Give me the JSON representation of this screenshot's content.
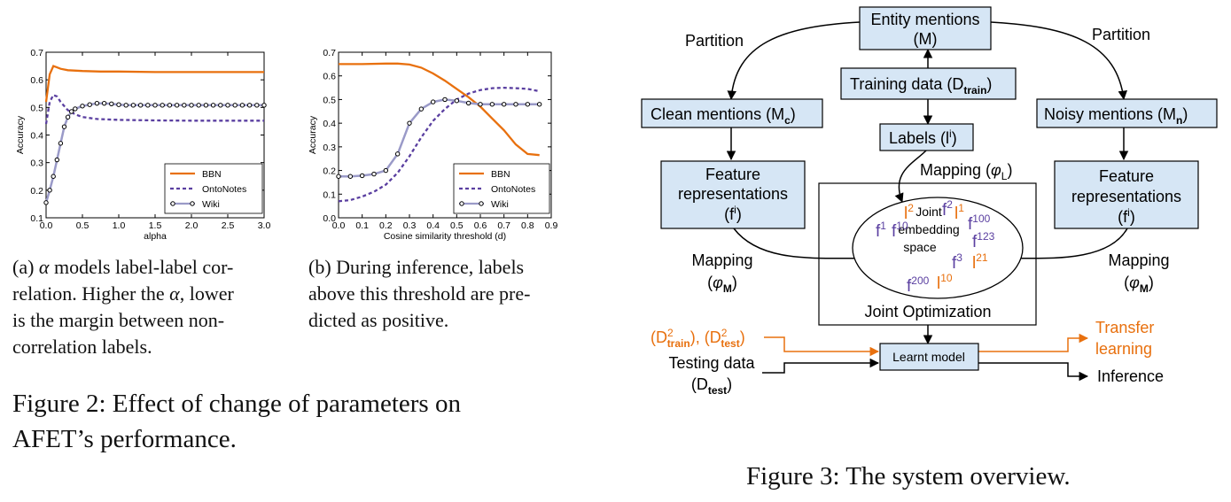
{
  "chart_data": [
    {
      "type": "line",
      "xlabel": "alpha",
      "ylabel": "Accuracy",
      "xlim": [
        0.0,
        3.0
      ],
      "ylim": [
        0.1,
        0.7
      ],
      "xticks": [
        "0.0",
        "0.5",
        "1.0",
        "1.5",
        "2.0",
        "2.5",
        "3.0"
      ],
      "yticks": [
        "0.1",
        "0.2",
        "0.3",
        "0.4",
        "0.5",
        "0.6",
        "0.7"
      ],
      "legend_position": "lower-right",
      "series": [
        {
          "name": "BBN",
          "color": "#e8700e",
          "style": "solid",
          "markers": false,
          "x": [
            0.0,
            0.05,
            0.1,
            0.15,
            0.2,
            0.3,
            0.5,
            0.75,
            1.0,
            1.5,
            2.0,
            2.5,
            3.0
          ],
          "y": [
            0.52,
            0.62,
            0.65,
            0.645,
            0.64,
            0.635,
            0.632,
            0.63,
            0.63,
            0.628,
            0.628,
            0.628,
            0.628
          ]
        },
        {
          "name": "OntoNotes",
          "color": "#5a3fa0",
          "style": "dashed",
          "markers": false,
          "x": [
            0.0,
            0.05,
            0.1,
            0.15,
            0.2,
            0.3,
            0.4,
            0.5,
            0.7,
            1.0,
            1.5,
            2.0,
            2.5,
            3.0
          ],
          "y": [
            0.44,
            0.52,
            0.545,
            0.54,
            0.52,
            0.49,
            0.475,
            0.465,
            0.458,
            0.455,
            0.453,
            0.452,
            0.452,
            0.452
          ]
        },
        {
          "name": "Wiki",
          "color": "#9a9ac8",
          "style": "solid",
          "markers": true,
          "x": [
            0.0,
            0.05,
            0.1,
            0.15,
            0.2,
            0.25,
            0.3,
            0.35,
            0.4,
            0.5,
            0.6,
            0.7,
            0.8,
            0.9,
            1.0,
            1.1,
            1.2,
            1.3,
            1.4,
            1.5,
            1.6,
            1.7,
            1.8,
            1.9,
            2.0,
            2.1,
            2.2,
            2.3,
            2.4,
            2.5,
            2.6,
            2.7,
            2.8,
            2.9,
            3.0
          ],
          "y": [
            0.155,
            0.2,
            0.25,
            0.31,
            0.37,
            0.43,
            0.465,
            0.485,
            0.495,
            0.505,
            0.51,
            0.515,
            0.515,
            0.513,
            0.51,
            0.508,
            0.508,
            0.508,
            0.508,
            0.508,
            0.508,
            0.508,
            0.508,
            0.508,
            0.508,
            0.508,
            0.508,
            0.508,
            0.508,
            0.508,
            0.508,
            0.508,
            0.508,
            0.508,
            0.508
          ]
        }
      ]
    },
    {
      "type": "line",
      "xlabel": "Cosine similarity threshold (d)",
      "ylabel": "Accuracy",
      "xlim": [
        0.0,
        0.9
      ],
      "ylim": [
        0.0,
        0.7
      ],
      "xticks": [
        "0.0",
        "0.1",
        "0.2",
        "0.3",
        "0.4",
        "0.5",
        "0.6",
        "0.7",
        "0.8",
        "0.9"
      ],
      "yticks": [
        "0.0",
        "0.1",
        "0.2",
        "0.3",
        "0.4",
        "0.5",
        "0.6",
        "0.7"
      ],
      "legend_position": "lower-right",
      "series": [
        {
          "name": "BBN",
          "color": "#e8700e",
          "style": "solid",
          "markers": false,
          "x": [
            0.0,
            0.1,
            0.2,
            0.25,
            0.3,
            0.35,
            0.4,
            0.45,
            0.5,
            0.55,
            0.6,
            0.65,
            0.7,
            0.75,
            0.8,
            0.85
          ],
          "y": [
            0.65,
            0.65,
            0.652,
            0.652,
            0.648,
            0.635,
            0.61,
            0.58,
            0.545,
            0.51,
            0.47,
            0.42,
            0.37,
            0.31,
            0.27,
            0.265
          ]
        },
        {
          "name": "OntoNotes",
          "color": "#5a3fa0",
          "style": "dashed",
          "markers": false,
          "x": [
            0.0,
            0.05,
            0.1,
            0.15,
            0.2,
            0.25,
            0.3,
            0.35,
            0.4,
            0.45,
            0.5,
            0.55,
            0.6,
            0.65,
            0.7,
            0.75,
            0.8,
            0.85
          ],
          "y": [
            0.07,
            0.075,
            0.09,
            0.11,
            0.14,
            0.19,
            0.26,
            0.34,
            0.41,
            0.46,
            0.5,
            0.525,
            0.54,
            0.548,
            0.55,
            0.548,
            0.545,
            0.535
          ]
        },
        {
          "name": "Wiki",
          "color": "#9a9ac8",
          "style": "solid",
          "markers": true,
          "x": [
            0.0,
            0.05,
            0.1,
            0.15,
            0.2,
            0.25,
            0.3,
            0.35,
            0.4,
            0.45,
            0.5,
            0.55,
            0.6,
            0.65,
            0.7,
            0.75,
            0.8,
            0.85
          ],
          "y": [
            0.175,
            0.175,
            0.178,
            0.185,
            0.2,
            0.27,
            0.4,
            0.46,
            0.49,
            0.5,
            0.495,
            0.485,
            0.48,
            0.48,
            0.48,
            0.48,
            0.48,
            0.48
          ]
        }
      ]
    }
  ],
  "captions": {
    "a_prefix": "(a) ",
    "a_symbol": "α",
    "a_line1": " models label-label cor-",
    "a_line2a": "relation. Higher the ",
    "a_line2b": "α",
    "a_line2c": ", lower",
    "a_line3": "is the margin between non-",
    "a_line4": "correlation labels.",
    "b_line1": "(b) During inference, labels",
    "b_line2": "above this threshold are pre-",
    "b_line3": "dicted as positive.",
    "fig2_line1": "Figure 2:  Effect of change of parameters on",
    "fig2_line2": "AFET’s performance.",
    "fig3": "Figure 3: The system overview."
  },
  "diagram": {
    "entity_mentions_1": "Entity mentions",
    "entity_mentions_2": "(M)",
    "partition_left": "Partition",
    "partition_right": "Partition",
    "training_data": "Training data (D",
    "training_sub": "train",
    "training_close": ")",
    "clean": "Clean mentions (M",
    "clean_sub": "c",
    "clean_close": ")",
    "noisy": "Noisy mentions (M",
    "noisy_sub": "n",
    "noisy_close": ")",
    "labels": "Labels (l",
    "labels_sup": "i",
    "labels_close": ")",
    "mapping_l": "Mapping (",
    "mapping_l_phi": "φ",
    "mapping_l_sub": "L",
    "mapping_l_close": ")",
    "feature_1": "Feature",
    "feature_2": "representations",
    "feature_3": "(f",
    "feature_sup": "i",
    "feature_close": ")",
    "mapping_m": "Mapping",
    "mapping_m_open": "(",
    "mapping_m_phi": "φ",
    "mapping_m_sub": "M",
    "mapping_m_close": ")",
    "joint_1": "Joint",
    "joint_2": "embedding",
    "joint_3": "space",
    "joint_opt": "Joint Optimization",
    "learnt_model": "Learnt model",
    "d2_a": "(D",
    "d2_sup": "2",
    "d2_train": "train",
    "d2_sep": "), (D",
    "d2_test": "test",
    "d2_close": ")",
    "testing_1": "Testing data",
    "testing_2": "(D",
    "testing_sub": "test",
    "testing_close": ")",
    "transfer_1": "Transfer",
    "transfer_2": "learning",
    "inference": "Inference",
    "embed_items": [
      {
        "base": "f",
        "sup": "1",
        "color": "#5a3fa0"
      },
      {
        "base": "f",
        "sup": "10",
        "color": "#5a3fa0"
      },
      {
        "base": "l",
        "sup": "2",
        "color": "#e8700e"
      },
      {
        "base": "f",
        "sup": "2",
        "color": "#5a3fa0"
      },
      {
        "base": "l",
        "sup": "1",
        "color": "#e8700e"
      },
      {
        "base": "f",
        "sup": "100",
        "color": "#5a3fa0"
      },
      {
        "base": "f",
        "sup": "123",
        "color": "#5a3fa0"
      },
      {
        "base": "f",
        "sup": "3",
        "color": "#5a3fa0"
      },
      {
        "base": "l",
        "sup": "21",
        "color": "#e8700e"
      },
      {
        "base": "f",
        "sup": "200",
        "color": "#5a3fa0"
      },
      {
        "base": "l",
        "sup": "10",
        "color": "#e8700e"
      }
    ],
    "box_fill": "#d6e6f5",
    "orange": "#e8700e",
    "purple": "#5a3fa0"
  }
}
